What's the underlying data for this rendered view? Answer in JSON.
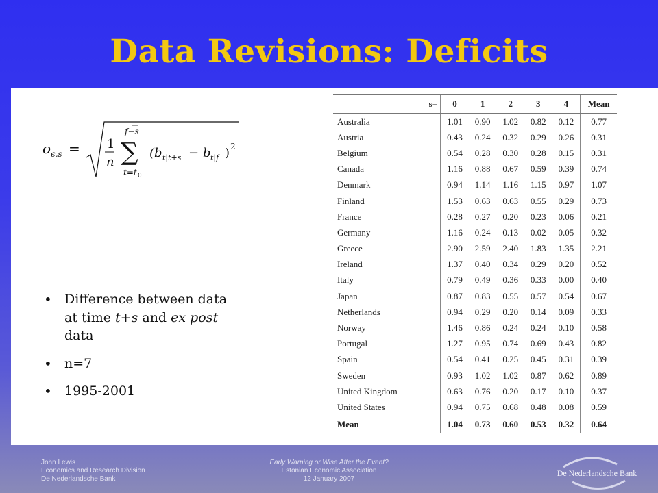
{
  "title": "Data Revisions: Deficits",
  "bullets": [
    {
      "parts": [
        {
          "text": "Difference between data at time ",
          "italic": false
        },
        {
          "text": "t+s",
          "italic": true
        },
        {
          "text": " and ",
          "italic": false
        },
        {
          "text": "ex post",
          "italic": true
        },
        {
          "text": " data",
          "italic": false
        }
      ]
    },
    {
      "parts": [
        {
          "text": "n=7",
          "italic": false
        }
      ]
    },
    {
      "parts": [
        {
          "text": "1995-2001",
          "italic": false
        }
      ]
    }
  ],
  "table": {
    "headers": [
      "",
      "s=",
      "0",
      "1",
      "2",
      "3",
      "4",
      "Mean"
    ],
    "rows": [
      {
        "country": "Australia",
        "values": [
          "1.01",
          "0.90",
          "1.02",
          "0.82",
          "0.12"
        ],
        "mean": "0.77"
      },
      {
        "country": "Austria",
        "values": [
          "0.43",
          "0.24",
          "0.32",
          "0.29",
          "0.26"
        ],
        "mean": "0.31"
      },
      {
        "country": "Belgium",
        "values": [
          "0.54",
          "0.28",
          "0.30",
          "0.28",
          "0.15"
        ],
        "mean": "0.31"
      },
      {
        "country": "Canada",
        "values": [
          "1.16",
          "0.88",
          "0.67",
          "0.59",
          "0.39"
        ],
        "mean": "0.74"
      },
      {
        "country": "Denmark",
        "values": [
          "0.94",
          "1.14",
          "1.16",
          "1.15",
          "0.97"
        ],
        "mean": "1.07"
      },
      {
        "country": "Finland",
        "values": [
          "1.53",
          "0.63",
          "0.63",
          "0.55",
          "0.29"
        ],
        "mean": "0.73"
      },
      {
        "country": "France",
        "values": [
          "0.28",
          "0.27",
          "0.20",
          "0.23",
          "0.06"
        ],
        "mean": "0.21"
      },
      {
        "country": "Germany",
        "values": [
          "1.16",
          "0.24",
          "0.13",
          "0.02",
          "0.05"
        ],
        "mean": "0.32"
      },
      {
        "country": "Greece",
        "values": [
          "2.90",
          "2.59",
          "2.40",
          "1.83",
          "1.35"
        ],
        "mean": "2.21"
      },
      {
        "country": "Ireland",
        "values": [
          "1.37",
          "0.40",
          "0.34",
          "0.29",
          "0.20"
        ],
        "mean": "0.52"
      },
      {
        "country": "Italy",
        "values": [
          "0.79",
          "0.49",
          "0.36",
          "0.33",
          "0.00"
        ],
        "mean": "0.40"
      },
      {
        "country": "Japan",
        "values": [
          "0.87",
          "0.83",
          "0.55",
          "0.57",
          "0.54"
        ],
        "mean": "0.67"
      },
      {
        "country": "Netherlands",
        "values": [
          "0.94",
          "0.29",
          "0.20",
          "0.14",
          "0.09"
        ],
        "mean": "0.33"
      },
      {
        "country": "Norway",
        "values": [
          "1.46",
          "0.86",
          "0.24",
          "0.24",
          "0.10"
        ],
        "mean": "0.58"
      },
      {
        "country": "Portugal",
        "values": [
          "1.27",
          "0.95",
          "0.74",
          "0.69",
          "0.43"
        ],
        "mean": "0.82"
      },
      {
        "country": "Spain",
        "values": [
          "0.54",
          "0.41",
          "0.25",
          "0.45",
          "0.31"
        ],
        "mean": "0.39"
      },
      {
        "country": "Sweden",
        "values": [
          "0.93",
          "1.02",
          "1.02",
          "0.87",
          "0.62"
        ],
        "mean": "0.89"
      },
      {
        "country": "United Kingdom",
        "values": [
          "0.63",
          "0.76",
          "0.20",
          "0.17",
          "0.10"
        ],
        "mean": "0.37"
      },
      {
        "country": "United States",
        "values": [
          "0.94",
          "0.75",
          "0.68",
          "0.48",
          "0.08"
        ],
        "mean": "0.59"
      }
    ],
    "footer": {
      "country": "Mean",
      "values": [
        "1.04",
        "0.73",
        "0.60",
        "0.53",
        "0.32"
      ],
      "mean": "0.64"
    }
  },
  "formula": {
    "lhs": "σ",
    "lhs_sub": "ϵ,s",
    "equals": "=",
    "frac_num": "1",
    "frac_den": "n",
    "sum_upper": "f−s",
    "sum_lower": "t=t",
    "sum_lower_sub": "0",
    "sum_symbol": "∑",
    "body": "(b",
    "body_sub1": "t|t+s",
    "minus": "−",
    "b2": "b",
    "body_sub2": "t|f",
    "close": ")",
    "power": "2"
  },
  "footer": {
    "left": [
      "John Lewis",
      "Economics and Research Division",
      "De Nederlandsche Bank"
    ],
    "center_italic": "Early Warning or Wise After the Event?",
    "center": [
      "Estonian Economic Association",
      "12 January 2007"
    ],
    "logo_text": "De Nederlandsche Bank"
  },
  "colors": {
    "title": "#f2c811",
    "background": "#3a3ae8",
    "content_bg": "#ffffff"
  }
}
